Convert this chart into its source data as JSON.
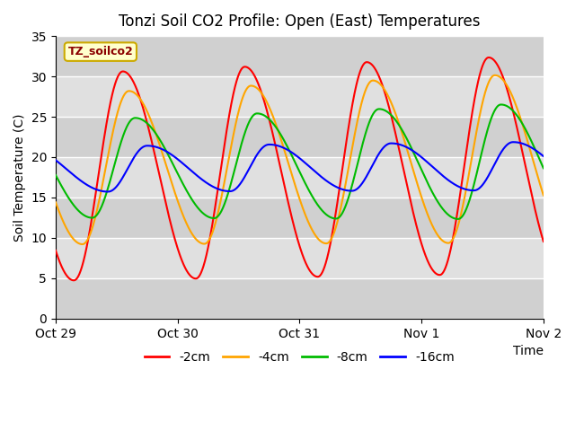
{
  "title": "Tonzi Soil CO2 Profile: Open (East) Temperatures",
  "xlabel": "Time",
  "ylabel": "Soil Temperature (C)",
  "ylim": [
    0,
    35
  ],
  "xlim": [
    0,
    4
  ],
  "xtick_positions": [
    0,
    1,
    2,
    3,
    4
  ],
  "xtick_labels": [
    "Oct 29",
    "Oct 30",
    "Oct 31",
    "Nov 1",
    "Nov 2"
  ],
  "ytick_values": [
    0,
    5,
    10,
    15,
    20,
    25,
    30,
    35
  ],
  "legend_label": "TZ_soilco2",
  "series": [
    {
      "label": "-2cm",
      "color": "#ff0000"
    },
    {
      "label": "-4cm",
      "color": "#ffa500"
    },
    {
      "label": "-8cm",
      "color": "#00bb00"
    },
    {
      "label": "-16cm",
      "color": "#0000ff"
    }
  ],
  "band_colors": [
    "#d0d0d0",
    "#e0e0e0",
    "#d0d0d0",
    "#e0e0e0",
    "#d0d0d0",
    "#e0e0e0",
    "#d0d0d0"
  ],
  "grid_line_color": "#ffffff",
  "background_color": "#ffffff",
  "title_fontsize": 12,
  "label_fontsize": 10,
  "tick_fontsize": 10,
  "legend_fontsize": 10
}
